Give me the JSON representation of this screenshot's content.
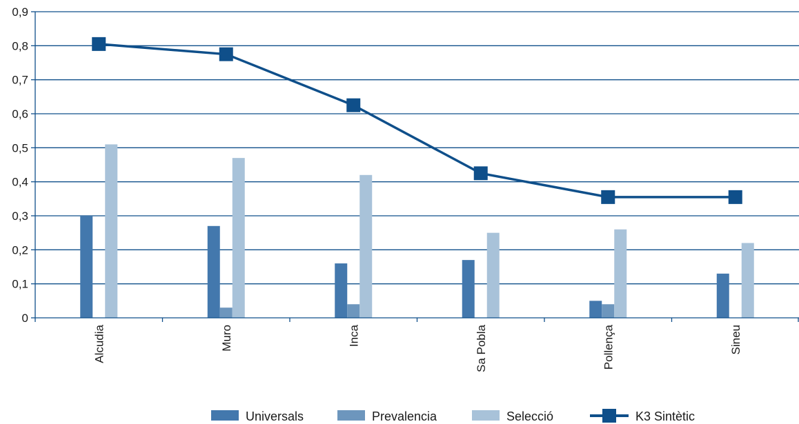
{
  "chart_data": {
    "type": "bar",
    "categories": [
      "Alcudia",
      "Muro",
      "Inca",
      "Sa Pobla",
      "Pollença",
      "Sineu"
    ],
    "series": [
      {
        "name": "Universals",
        "kind": "bar",
        "color": "#4378ad",
        "values": [
          0.3,
          0.27,
          0.16,
          0.17,
          0.05,
          0.13
        ]
      },
      {
        "name": "Prevalencia",
        "kind": "bar",
        "color": "#6d96bd",
        "values": [
          0,
          0.03,
          0.04,
          0,
          0.04,
          0
        ]
      },
      {
        "name": "Selecció",
        "kind": "bar",
        "color": "#a8c2d9",
        "values": [
          0.51,
          0.47,
          0.42,
          0.25,
          0.26,
          0.22
        ]
      },
      {
        "name": "K3 Sintètic",
        "kind": "line",
        "marker": "square",
        "color": "#0f4f8a",
        "values": [
          0.805,
          0.775,
          0.625,
          0.425,
          0.355,
          0.355
        ]
      }
    ],
    "y_ticks": [
      "0",
      "0,1",
      "0,2",
      "0,3",
      "0,4",
      "0,5",
      "0,6",
      "0,7",
      "0,8",
      "0,9"
    ],
    "ylim": [
      0,
      0.9
    ],
    "grid": true,
    "legend_position": "bottom",
    "title": "",
    "xlabel": "",
    "ylabel": ""
  }
}
